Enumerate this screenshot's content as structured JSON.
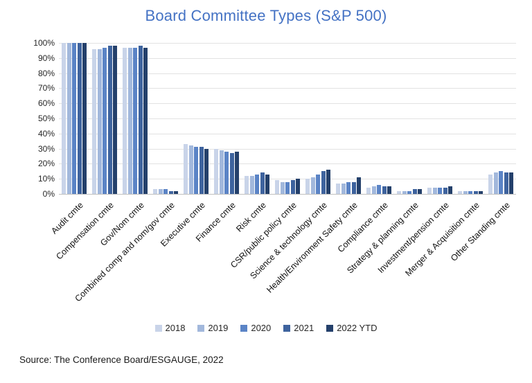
{
  "title": "Board Committee Types (S&P 500)",
  "source": "Source: The Conference Board/ESGAUGE, 2022",
  "colors": {
    "title_text": "#4472c4",
    "gridline": "#e2e2e2",
    "axis_line": "#c0c0c0",
    "tick_text": "#262626"
  },
  "chart_data": {
    "type": "bar",
    "title": "Board Committee Types (S&P 500)",
    "xlabel": "",
    "ylabel": "",
    "ylim": [
      0,
      100
    ],
    "yticks": [
      "0%",
      "10%",
      "20%",
      "30%",
      "40%",
      "50%",
      "60%",
      "70%",
      "80%",
      "90%",
      "100%"
    ],
    "grid": true,
    "legend_position": "bottom",
    "categories": [
      "Audit cmte",
      "Compensation cmte",
      "Gov/Nom cmte",
      "Combined comp and nom/gov cmte",
      "Executive cmte",
      "Finance cmte",
      "Risk cmte",
      "CSR/public policy cmte",
      "Science & technology cmte",
      "Health/Environment Safety cmte",
      "Compliance cmte",
      "Strategy & planning cmte",
      "Investment/pension cmte",
      "Merger & Acquisition cmte",
      "Other Standing cmte"
    ],
    "series": [
      {
        "name": "2018",
        "color": "#c9d4e9",
        "values": [
          100,
          96,
          97,
          3,
          33,
          30,
          12,
          9,
          10,
          7,
          4,
          2,
          4,
          2,
          13
        ]
      },
      {
        "name": "2019",
        "color": "#a2b8dc",
        "values": [
          100,
          96,
          97,
          3,
          32,
          29,
          12,
          8,
          11,
          7,
          5,
          2,
          4,
          2,
          14
        ]
      },
      {
        "name": "2020",
        "color": "#5b84c6",
        "values": [
          100,
          97,
          97,
          3,
          31,
          28,
          13,
          8,
          13,
          8,
          6,
          2,
          4,
          2,
          15
        ]
      },
      {
        "name": "2021",
        "color": "#3e639e",
        "values": [
          100,
          98,
          98,
          2,
          31,
          27,
          14,
          9,
          15,
          8,
          5,
          3,
          4,
          2,
          14
        ]
      },
      {
        "name": "2022 YTD",
        "color": "#24406b",
        "values": [
          100,
          98,
          97,
          2,
          30,
          28,
          13,
          10,
          16,
          11,
          5,
          3,
          5,
          2,
          14
        ]
      }
    ]
  }
}
